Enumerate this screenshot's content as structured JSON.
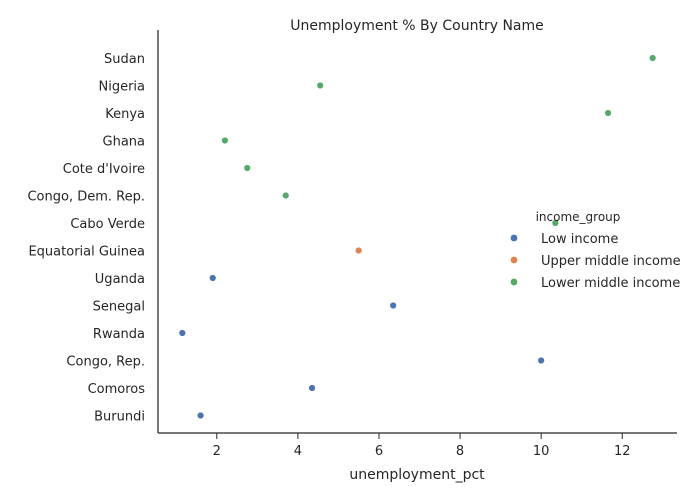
{
  "chart_data": {
    "type": "scatter",
    "title": "Unemployment % By Country Name",
    "xlabel": "unemployment_pct",
    "ylabel": "",
    "xlim": [
      0.55,
      13.35
    ],
    "xticks": [
      "2",
      "4",
      "6",
      "8",
      "10",
      "12"
    ],
    "categories": [
      "Sudan",
      "Nigeria",
      "Kenya",
      "Ghana",
      "Cote d'Ivoire",
      "Congo, Dem. Rep.",
      "Cabo Verde",
      "Equatorial Guinea",
      "Uganda",
      "Senegal",
      "Rwanda",
      "Congo, Rep.",
      "Comoros",
      "Burundi"
    ],
    "legend_title": "income_group",
    "legend_position": "right",
    "grid": false,
    "series": [
      {
        "name": "Low income",
        "color": "#4C72B0",
        "points": [
          {
            "y": "Uganda",
            "x": 1.9
          },
          {
            "y": "Senegal",
            "x": 6.35
          },
          {
            "y": "Rwanda",
            "x": 1.15
          },
          {
            "y": "Congo, Rep.",
            "x": 10.0
          },
          {
            "y": "Comoros",
            "x": 4.35
          },
          {
            "y": "Burundi",
            "x": 1.6
          }
        ]
      },
      {
        "name": "Upper middle income",
        "color": "#DD8452",
        "points": [
          {
            "y": "Equatorial Guinea",
            "x": 5.5
          }
        ]
      },
      {
        "name": "Lower middle income",
        "color": "#55A868",
        "points": [
          {
            "y": "Sudan",
            "x": 12.75
          },
          {
            "y": "Nigeria",
            "x": 4.55
          },
          {
            "y": "Kenya",
            "x": 11.65
          },
          {
            "y": "Ghana",
            "x": 2.2
          },
          {
            "y": "Cote d'Ivoire",
            "x": 2.75
          },
          {
            "y": "Congo, Dem. Rep.",
            "x": 3.7
          },
          {
            "y": "Cabo Verde",
            "x": 10.35
          }
        ]
      }
    ]
  }
}
